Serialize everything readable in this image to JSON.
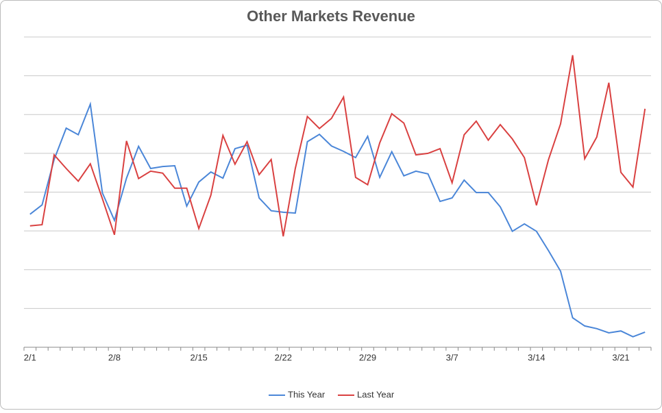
{
  "chart_data": {
    "type": "line",
    "title": "Other Markets Revenue",
    "categories": [
      "2/1",
      null,
      null,
      null,
      null,
      null,
      null,
      "2/8",
      null,
      null,
      null,
      null,
      null,
      null,
      "2/15",
      null,
      null,
      null,
      null,
      null,
      null,
      "2/22",
      null,
      null,
      null,
      null,
      null,
      null,
      "2/29",
      null,
      null,
      null,
      null,
      null,
      null,
      "3/7",
      null,
      null,
      null,
      null,
      null,
      null,
      "3/14",
      null,
      null,
      null,
      null,
      null,
      null,
      "3/21",
      null,
      null
    ],
    "series": [
      {
        "name": "This Year",
        "color": "#4a86d8",
        "values": [
          3.43,
          3.67,
          4.84,
          5.65,
          5.48,
          6.27,
          3.98,
          3.27,
          4.36,
          5.18,
          4.61,
          4.66,
          4.68,
          3.64,
          4.26,
          4.52,
          4.36,
          5.12,
          5.21,
          3.85,
          3.52,
          3.48,
          3.46,
          5.3,
          5.49,
          5.19,
          5.05,
          4.89,
          5.44,
          4.38,
          5.04,
          4.42,
          4.54,
          4.47,
          3.76,
          3.85,
          4.31,
          3.99,
          3.99,
          3.62,
          2.99,
          3.18,
          2.99,
          2.49,
          1.96,
          0.76,
          0.55,
          0.48,
          0.37,
          0.42,
          0.27,
          0.39
        ]
      },
      {
        "name": "Last Year",
        "color": "#d94040",
        "values": [
          3.13,
          3.16,
          4.96,
          4.61,
          4.28,
          4.73,
          3.83,
          2.9,
          5.32,
          4.35,
          4.54,
          4.49,
          4.1,
          4.1,
          3.06,
          3.92,
          5.46,
          4.72,
          5.3,
          4.45,
          4.84,
          2.86,
          4.61,
          5.95,
          5.64,
          5.9,
          6.45,
          4.38,
          4.19,
          5.27,
          6.02,
          5.78,
          4.96,
          5.0,
          5.12,
          4.24,
          5.48,
          5.83,
          5.34,
          5.74,
          5.37,
          4.89,
          3.66,
          4.84,
          5.76,
          7.53,
          4.86,
          5.42,
          6.82,
          4.51,
          4.13,
          6.15
        ]
      }
    ],
    "ylim": [
      0,
      8
    ],
    "yticks": [
      0,
      1,
      2,
      3,
      4,
      5,
      6,
      7,
      8
    ],
    "grid": true,
    "show_ytick_labels": false,
    "legend": "bottom"
  }
}
